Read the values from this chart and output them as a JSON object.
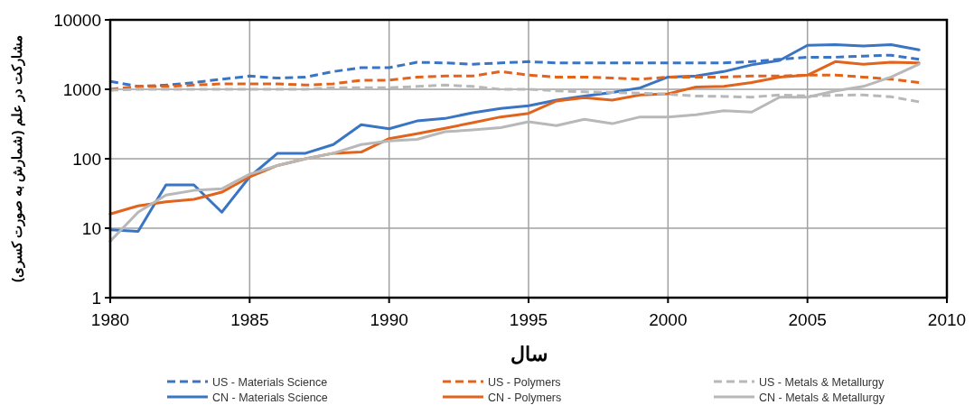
{
  "chart_data": {
    "type": "line",
    "xlabel": "سال",
    "ylabel": "مشارکت در علم (شمارش به صورت کسری)",
    "x": [
      1980,
      1981,
      1982,
      1983,
      1984,
      1985,
      1986,
      1987,
      1988,
      1989,
      1990,
      1991,
      1992,
      1993,
      1994,
      1995,
      1996,
      1997,
      1998,
      1999,
      2000,
      2001,
      2002,
      2003,
      2004,
      2005,
      2006,
      2007,
      2008,
      2009
    ],
    "xlim": [
      1980,
      2010
    ],
    "xticks": [
      1980,
      1985,
      1990,
      1995,
      2000,
      2005,
      2010
    ],
    "ylim": [
      1,
      10000
    ],
    "yticks": [
      1,
      10,
      100,
      1000,
      10000
    ],
    "log": true,
    "grid": true,
    "legend": "bottom",
    "series": [
      {
        "name": "US - Materials Science",
        "color": "#3a75c4",
        "line_style": "dashed",
        "values": [
          1300,
          1100,
          1150,
          1250,
          1400,
          1550,
          1450,
          1500,
          1800,
          2050,
          2050,
          2450,
          2400,
          2300,
          2400,
          2500,
          2400,
          2400,
          2400,
          2400,
          2400,
          2400,
          2400,
          2500,
          2700,
          2900,
          2900,
          3000,
          3100,
          2700
        ]
      },
      {
        "name": "CN - Materials Science",
        "color": "#3a75c4",
        "line_style": "solid",
        "values": [
          9.5,
          9,
          42,
          42,
          17,
          55,
          120,
          120,
          160,
          310,
          270,
          350,
          380,
          460,
          530,
          580,
          700,
          800,
          900,
          1050,
          1500,
          1550,
          1800,
          2250,
          2600,
          4300,
          4400,
          4200,
          4400,
          3700
        ]
      },
      {
        "name": "US - Polymers",
        "color": "#e0641e",
        "line_style": "dashed",
        "values": [
          1000,
          1100,
          1100,
          1150,
          1200,
          1200,
          1200,
          1150,
          1200,
          1350,
          1350,
          1500,
          1550,
          1550,
          1800,
          1600,
          1500,
          1500,
          1450,
          1400,
          1500,
          1500,
          1500,
          1550,
          1550,
          1600,
          1600,
          1500,
          1400,
          1250
        ]
      },
      {
        "name": "CN - Polymers",
        "color": "#e0641e",
        "line_style": "solid",
        "values": [
          16,
          21,
          24,
          26,
          33,
          55,
          80,
          100,
          120,
          125,
          195,
          230,
          275,
          330,
          400,
          450,
          680,
          760,
          700,
          830,
          860,
          1080,
          1100,
          1250,
          1500,
          1600,
          2500,
          2300,
          2450,
          2400
        ]
      },
      {
        "name": "US - Metals & Metallurgy",
        "color": "#b8b8b8",
        "line_style": "dashed",
        "values": [
          970,
          1000,
          1000,
          1000,
          1000,
          1000,
          1000,
          1000,
          1050,
          1050,
          1050,
          1100,
          1150,
          1100,
          1000,
          1000,
          950,
          920,
          900,
          880,
          850,
          800,
          790,
          770,
          830,
          800,
          820,
          830,
          780,
          660
        ]
      },
      {
        "name": "CN - Metals & Metallurgy",
        "color": "#b8b8b8",
        "line_style": "solid",
        "values": [
          6.5,
          17,
          30,
          35,
          37,
          60,
          80,
          100,
          120,
          160,
          180,
          190,
          245,
          260,
          280,
          340,
          300,
          370,
          320,
          400,
          400,
          430,
          490,
          470,
          770,
          770,
          950,
          1100,
          1500,
          2300
        ]
      }
    ]
  }
}
